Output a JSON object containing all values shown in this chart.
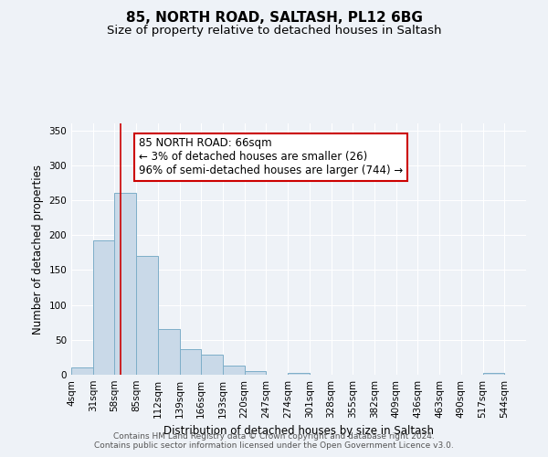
{
  "title": "85, NORTH ROAD, SALTASH, PL12 6BG",
  "subtitle": "Size of property relative to detached houses in Saltash",
  "xlabel": "Distribution of detached houses by size in Saltash",
  "ylabel": "Number of detached properties",
  "bin_labels": [
    "4sqm",
    "31sqm",
    "58sqm",
    "85sqm",
    "112sqm",
    "139sqm",
    "166sqm",
    "193sqm",
    "220sqm",
    "247sqm",
    "274sqm",
    "301sqm",
    "328sqm",
    "355sqm",
    "382sqm",
    "409sqm",
    "436sqm",
    "463sqm",
    "490sqm",
    "517sqm",
    "544sqm"
  ],
  "bin_edges": [
    4,
    31,
    58,
    85,
    112,
    139,
    166,
    193,
    220,
    247,
    274,
    301,
    328,
    355,
    382,
    409,
    436,
    463,
    490,
    517,
    544
  ],
  "bar_heights": [
    10,
    192,
    260,
    170,
    65,
    37,
    29,
    13,
    5,
    0,
    3,
    0,
    0,
    0,
    0,
    0,
    0,
    0,
    0,
    2
  ],
  "bar_color": "#c9d9e8",
  "bar_edge_color": "#7daec8",
  "vline_x": 66,
  "vline_color": "#cc0000",
  "annotation_line1": "85 NORTH ROAD: 66sqm",
  "annotation_line2": "← 3% of detached houses are smaller (26)",
  "annotation_line3": "96% of semi-detached houses are larger (744) →",
  "annotation_box_color": "#ffffff",
  "annotation_box_edge_color": "#cc0000",
  "ylim": [
    0,
    360
  ],
  "yticks": [
    0,
    50,
    100,
    150,
    200,
    250,
    300,
    350
  ],
  "background_color": "#eef2f7",
  "grid_color": "#ffffff",
  "footer_text": "Contains HM Land Registry data © Crown copyright and database right 2024.\nContains public sector information licensed under the Open Government Licence v3.0.",
  "title_fontsize": 11,
  "subtitle_fontsize": 9.5,
  "ylabel_fontsize": 8.5,
  "xlabel_fontsize": 8.5,
  "tick_fontsize": 7.5,
  "annotation_fontsize": 8.5,
  "footer_fontsize": 6.5
}
